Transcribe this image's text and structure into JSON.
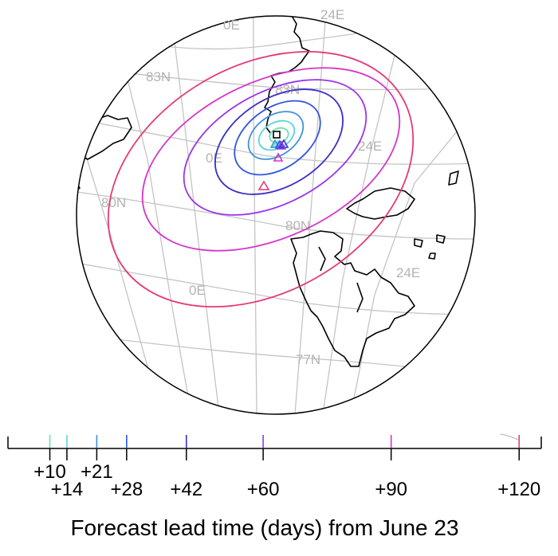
{
  "map": {
    "grid_labels": {
      "lon_top_0E": "0E",
      "lon_top_24E": "24E",
      "lat_83N_left": "83N",
      "lat_83N_center": "83N",
      "lon_center_0E": "0E",
      "lon_center_24E": "24E",
      "lat_80N_left": "80N",
      "lat_80N_center": "80N",
      "lon_lower_0E": "0E",
      "lon_lower_24E": "24E",
      "lat_77N": "77N"
    },
    "colors": {
      "grid": "#c4c4c4",
      "coast": "#000000",
      "lead_10": "#6be0b4",
      "lead_14": "#5fd3dd",
      "lead_21": "#3f92d8",
      "lead_28": "#2f55e0",
      "lead_42": "#3a2fc6",
      "lead_60": "#9b35e8",
      "lead_90": "#d535c8",
      "lead_120": "#e43a78"
    }
  },
  "timeline": {
    "ticks": [
      {
        "label": "+10",
        "days": 10,
        "color": "#6be0b4"
      },
      {
        "label": "+14",
        "days": 14,
        "color": "#5fd3dd"
      },
      {
        "label": "+21",
        "days": 21,
        "color": "#3f92d8"
      },
      {
        "label": "+28",
        "days": 28,
        "color": "#2f55e0"
      },
      {
        "label": "+42",
        "days": 42,
        "color": "#3a2fc6"
      },
      {
        "label": "+60",
        "days": 60,
        "color": "#9b35e8"
      },
      {
        "label": "+90",
        "days": 90,
        "color": "#d535c8"
      },
      {
        "label": "+120",
        "days": 120,
        "color": "#e43a78"
      }
    ],
    "caption": "Forecast lead time (days) from June 23"
  }
}
